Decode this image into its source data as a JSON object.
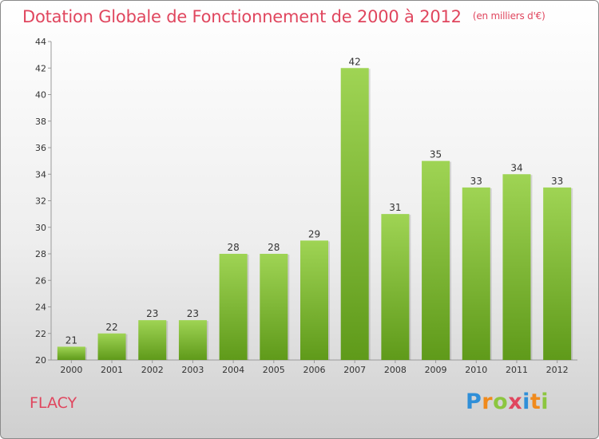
{
  "header": {
    "title": "Dotation Globale de Fonctionnement de 2000 à 2012",
    "subtitle": "(en milliers d'€)"
  },
  "commune": "FLACY",
  "logo": {
    "text": "Proxiti",
    "letters": [
      "P",
      "r",
      "o",
      "x",
      "i",
      "t",
      "i"
    ]
  },
  "colors": {
    "title": "#e0465e",
    "bar_top": "#9fd454",
    "bar_bottom": "#5f9a1a"
  },
  "chart_data": {
    "type": "bar",
    "categories": [
      "2000",
      "2001",
      "2002",
      "2003",
      "2004",
      "2005",
      "2006",
      "2007",
      "2008",
      "2009",
      "2010",
      "2011",
      "2012"
    ],
    "values": [
      21,
      22,
      23,
      23,
      28,
      28,
      29,
      42,
      31,
      35,
      33,
      34,
      33
    ],
    "ylim": [
      20,
      44
    ],
    "yticks": [
      20,
      22,
      24,
      26,
      28,
      30,
      32,
      34,
      36,
      38,
      40,
      42,
      44
    ],
    "grid": false,
    "data_labels": true
  }
}
